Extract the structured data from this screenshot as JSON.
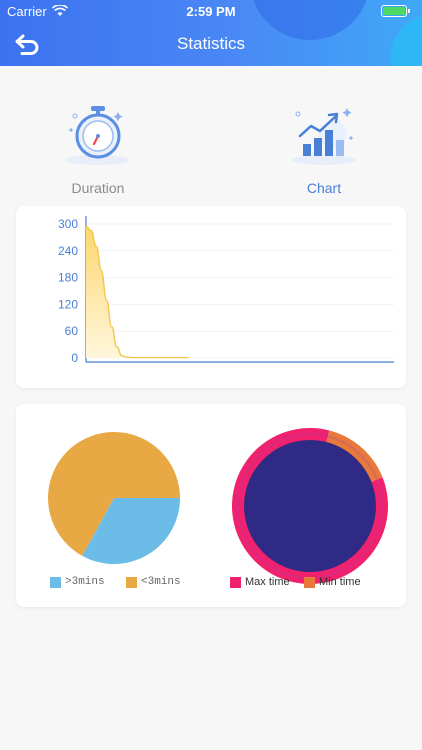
{
  "status_bar": {
    "carrier": "Carrier",
    "time": "2:59 PM"
  },
  "nav": {
    "title": "Statistics",
    "back_icon": "back-arrow-icon"
  },
  "tabs": [
    {
      "label": "Duration",
      "icon": "stopwatch-icon",
      "color": "#8c8c8c"
    },
    {
      "label": "Chart",
      "icon": "bar-chart-growth-icon",
      "color": "#4a7fd6"
    }
  ],
  "chart_data": [
    {
      "type": "area",
      "title": "",
      "xlabel": "",
      "ylabel": "",
      "y_ticks": [
        "300",
        "240",
        "180",
        "120",
        "60",
        "0"
      ],
      "ylim": [
        0,
        300
      ],
      "x": [
        0,
        1,
        2,
        3,
        4,
        5,
        6,
        7,
        8,
        9,
        10,
        11,
        12,
        13,
        14,
        15,
        16,
        17,
        18,
        19,
        20
      ],
      "series": [
        {
          "values": [
            295,
            285,
            250,
            195,
            130,
            70,
            25,
            5,
            2,
            1,
            1,
            1,
            1,
            1,
            1,
            1,
            1,
            1,
            1,
            1,
            1
          ],
          "color": "#f0c850"
        }
      ],
      "xlim": [
        0,
        60
      ],
      "grid": true
    },
    {
      "type": "pie",
      "labels": [
        ">3mins",
        "<3mins"
      ],
      "values": [
        33,
        67
      ],
      "colors": [
        "#6bbde8",
        "#e8a945"
      ],
      "legend": "bottom"
    },
    {
      "type": "pie",
      "labels": [
        "Max time",
        "Min time"
      ],
      "values": [
        85,
        15
      ],
      "colors": [
        "#f0226d",
        "#e8793a"
      ],
      "inner_color": "#2e2a85",
      "legend": "bottom"
    }
  ]
}
